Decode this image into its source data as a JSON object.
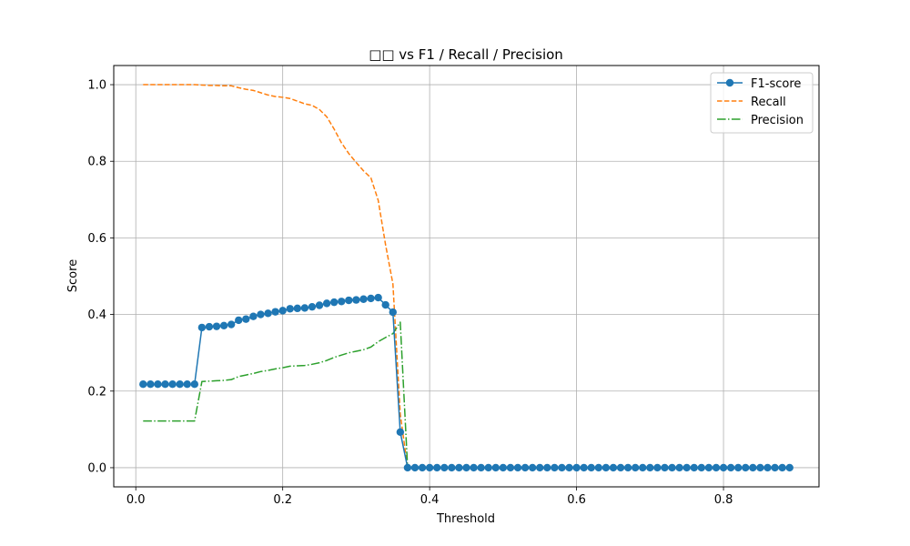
{
  "chart_data": {
    "type": "line",
    "title": "□□ vs F1 / Recall / Precision",
    "xlabel": "Threshold",
    "ylabel": "Score",
    "xlim": [
      -0.03,
      0.93
    ],
    "ylim": [
      -0.05,
      1.05
    ],
    "xticks": [
      0.0,
      0.2,
      0.4,
      0.6,
      0.8
    ],
    "xtick_labels": [
      "0.0",
      "0.2",
      "0.4",
      "0.6",
      "0.8"
    ],
    "yticks": [
      0.0,
      0.2,
      0.4,
      0.6,
      0.8,
      1.0
    ],
    "ytick_labels": [
      "0.0",
      "0.2",
      "0.4",
      "0.6",
      "0.8",
      "1.0"
    ],
    "grid": true,
    "legend_position": "top-right",
    "x": [
      0.01,
      0.02,
      0.03,
      0.04,
      0.05,
      0.06,
      0.07,
      0.08,
      0.09,
      0.1,
      0.11,
      0.12,
      0.13,
      0.14,
      0.15,
      0.16,
      0.17,
      0.18,
      0.19,
      0.2,
      0.21,
      0.22,
      0.23,
      0.24,
      0.25,
      0.26,
      0.27,
      0.28,
      0.29,
      0.3,
      0.31,
      0.32,
      0.33,
      0.34,
      0.35,
      0.36,
      0.37,
      0.38,
      0.39,
      0.4,
      0.41,
      0.42,
      0.43,
      0.44,
      0.45,
      0.46,
      0.47,
      0.48,
      0.49,
      0.5,
      0.51,
      0.52,
      0.53,
      0.54,
      0.55,
      0.56,
      0.57,
      0.58,
      0.59,
      0.6,
      0.61,
      0.62,
      0.63,
      0.64,
      0.65,
      0.66,
      0.67,
      0.68,
      0.69,
      0.7,
      0.71,
      0.72,
      0.73,
      0.74,
      0.75,
      0.76,
      0.77,
      0.78,
      0.79,
      0.8,
      0.81,
      0.82,
      0.83,
      0.84,
      0.85,
      0.86,
      0.87,
      0.88,
      0.89
    ],
    "series": [
      {
        "name": "F1-score",
        "color": "#1f77b4",
        "linestyle": "solid",
        "marker": "circle",
        "values": [
          0.218,
          0.218,
          0.218,
          0.218,
          0.218,
          0.218,
          0.218,
          0.218,
          0.366,
          0.368,
          0.369,
          0.371,
          0.374,
          0.385,
          0.388,
          0.395,
          0.4,
          0.403,
          0.407,
          0.41,
          0.415,
          0.416,
          0.417,
          0.42,
          0.424,
          0.429,
          0.432,
          0.434,
          0.437,
          0.438,
          0.44,
          0.442,
          0.444,
          0.425,
          0.406,
          0.093,
          0.0,
          0.0,
          0.0,
          0.0,
          0.0,
          0.0,
          0.0,
          0.0,
          0.0,
          0.0,
          0.0,
          0.0,
          0.0,
          0.0,
          0.0,
          0.0,
          0.0,
          0.0,
          0.0,
          0.0,
          0.0,
          0.0,
          0.0,
          0.0,
          0.0,
          0.0,
          0.0,
          0.0,
          0.0,
          0.0,
          0.0,
          0.0,
          0.0,
          0.0,
          0.0,
          0.0,
          0.0,
          0.0,
          0.0,
          0.0,
          0.0,
          0.0,
          0.0,
          0.0,
          0.0,
          0.0,
          0.0,
          0.0,
          0.0,
          0.0,
          0.0,
          0.0,
          0.0
        ]
      },
      {
        "name": "Recall",
        "color": "#ff7f0e",
        "linestyle": "dashed",
        "marker": "none",
        "values": [
          1.0,
          1.0,
          1.0,
          1.0,
          1.0,
          1.0,
          1.0,
          1.0,
          0.999,
          0.998,
          0.998,
          0.997,
          0.997,
          0.992,
          0.988,
          0.985,
          0.979,
          0.973,
          0.969,
          0.967,
          0.964,
          0.957,
          0.95,
          0.946,
          0.935,
          0.916,
          0.884,
          0.848,
          0.82,
          0.797,
          0.775,
          0.757,
          0.698,
          0.582,
          0.48,
          0.14,
          0.0,
          0.0,
          0.0,
          0.0,
          0.0,
          0.0,
          0.0,
          0.0,
          0.0,
          0.0,
          0.0,
          0.0,
          0.0,
          0.0,
          0.0,
          0.0,
          0.0,
          0.0,
          0.0,
          0.0,
          0.0,
          0.0,
          0.0,
          0.0,
          0.0,
          0.0,
          0.0,
          0.0,
          0.0,
          0.0,
          0.0,
          0.0,
          0.0,
          0.0,
          0.0,
          0.0,
          0.0,
          0.0,
          0.0,
          0.0,
          0.0,
          0.0,
          0.0,
          0.0,
          0.0,
          0.0,
          0.0,
          0.0,
          0.0,
          0.0,
          0.0,
          0.0,
          0.0
        ]
      },
      {
        "name": "Precision",
        "color": "#2ca02c",
        "linestyle": "dashdot",
        "marker": "none",
        "values": [
          0.122,
          0.122,
          0.122,
          0.122,
          0.122,
          0.122,
          0.122,
          0.122,
          0.225,
          0.226,
          0.227,
          0.228,
          0.23,
          0.238,
          0.242,
          0.246,
          0.251,
          0.254,
          0.258,
          0.261,
          0.265,
          0.266,
          0.267,
          0.27,
          0.274,
          0.28,
          0.288,
          0.294,
          0.3,
          0.304,
          0.308,
          0.315,
          0.329,
          0.34,
          0.35,
          0.38,
          0.0,
          0.0,
          0.0,
          0.0,
          0.0,
          0.0,
          0.0,
          0.0,
          0.0,
          0.0,
          0.0,
          0.0,
          0.0,
          0.0,
          0.0,
          0.0,
          0.0,
          0.0,
          0.0,
          0.0,
          0.0,
          0.0,
          0.0,
          0.0,
          0.0,
          0.0,
          0.0,
          0.0,
          0.0,
          0.0,
          0.0,
          0.0,
          0.0,
          0.0,
          0.0,
          0.0,
          0.0,
          0.0,
          0.0,
          0.0,
          0.0,
          0.0,
          0.0,
          0.0,
          0.0,
          0.0,
          0.0,
          0.0,
          0.0,
          0.0,
          0.0,
          0.0,
          0.0
        ]
      }
    ]
  }
}
